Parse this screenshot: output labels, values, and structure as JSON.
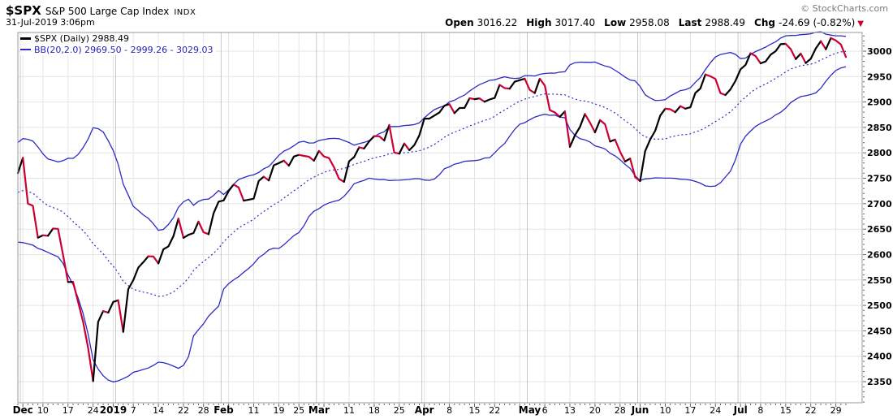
{
  "header": {
    "symbol": "$SPX",
    "name": "S&P 500 Large Cap Index",
    "exchange": "INDX",
    "datetime": "31-Jul-2019 3:06pm",
    "copyright": "© StockCharts.com"
  },
  "quote": {
    "open_label": "Open",
    "open": "3016.22",
    "high_label": "High",
    "high": "3017.40",
    "low_label": "Low",
    "low": "2958.08",
    "last_label": "Last",
    "last": "2988.49",
    "chg_label": "Chg",
    "chg": "-24.69 (-0.82%)"
  },
  "icons": {
    "down_triangle": "▼"
  },
  "legend": {
    "price": "$SPX (Daily) 2988.49",
    "bb": "BB(20,2.0) 2969.50 - 2999.26 - 3029.03"
  },
  "colors": {
    "price_up": "#000000",
    "price_down": "#cc0033",
    "band": "#2b2bc4",
    "grid": "#e4e4e4",
    "grid_month": "#c8c8c8",
    "border": "#9a9a9a",
    "tick": "#666666",
    "axis_text": "#000000"
  },
  "chart_data": {
    "type": "line",
    "title": "$SPX S&P 500 Large Cap Index (Daily) with Bollinger Bands (20,2.0)",
    "y_axis": {
      "min": 2350,
      "max": 3000,
      "step": 50,
      "range_top": 3036.7,
      "range_bottom": 2308.5,
      "grid": true
    },
    "x_ticks": [
      {
        "label": "Dec",
        "date": "2018-12-03",
        "bold": true
      },
      {
        "label": "10",
        "date": "2018-12-10"
      },
      {
        "label": "17",
        "date": "2018-12-17"
      },
      {
        "label": "24",
        "date": "2018-12-24"
      },
      {
        "label": "2019",
        "date": "2018-12-31",
        "bold": true
      },
      {
        "label": "7",
        "date": "2019-01-07"
      },
      {
        "label": "14",
        "date": "2019-01-14"
      },
      {
        "label": "22",
        "date": "2019-01-22"
      },
      {
        "label": "28",
        "date": "2019-01-28"
      },
      {
        "label": "Feb",
        "date": "2019-02-01",
        "bold": true
      },
      {
        "label": "11",
        "date": "2019-02-11"
      },
      {
        "label": "19",
        "date": "2019-02-19"
      },
      {
        "label": "25",
        "date": "2019-02-25"
      },
      {
        "label": "Mar",
        "date": "2019-03-01",
        "bold": true
      },
      {
        "label": "11",
        "date": "2019-03-11"
      },
      {
        "label": "18",
        "date": "2019-03-18"
      },
      {
        "label": "25",
        "date": "2019-03-25"
      },
      {
        "label": "Apr",
        "date": "2019-04-01",
        "bold": true
      },
      {
        "label": "8",
        "date": "2019-04-08"
      },
      {
        "label": "15",
        "date": "2019-04-15"
      },
      {
        "label": "22",
        "date": "2019-04-22"
      },
      {
        "label": "May",
        "date": "2019-05-01",
        "bold": true
      },
      {
        "label": "6",
        "date": "2019-05-06"
      },
      {
        "label": "13",
        "date": "2019-05-13"
      },
      {
        "label": "20",
        "date": "2019-05-20"
      },
      {
        "label": "28",
        "date": "2019-05-28"
      },
      {
        "label": "Jun",
        "date": "2019-06-03",
        "bold": true
      },
      {
        "label": "10",
        "date": "2019-06-10"
      },
      {
        "label": "17",
        "date": "2019-06-17"
      },
      {
        "label": "24",
        "date": "2019-06-24"
      },
      {
        "label": "Jul",
        "date": "2019-07-01",
        "bold": true
      },
      {
        "label": "8",
        "date": "2019-07-08"
      },
      {
        "label": "15",
        "date": "2019-07-15"
      },
      {
        "label": "22",
        "date": "2019-07-22"
      },
      {
        "label": "29",
        "date": "2019-07-29"
      }
    ],
    "bollinger": {
      "period": 20,
      "stddev": 2.0,
      "last_values": {
        "lower": 2969.5,
        "middle": 2999.26,
        "upper": 3029.03
      },
      "pre_window_closes": [
        2740.37,
        2723.06,
        2738.31,
        2755.45,
        2813.89,
        2806.83,
        2781.01,
        2726.22,
        2722.18,
        2701.58,
        2730.2,
        2736.27,
        2690.73,
        2641.89,
        2649.93,
        2632.56,
        2673.45,
        2682.17,
        2743.79,
        2737.8
      ]
    },
    "series": {
      "name": "$SPX Close",
      "dates": [
        "2018-11-30",
        "2018-12-03",
        "2018-12-04",
        "2018-12-06",
        "2018-12-07",
        "2018-12-10",
        "2018-12-11",
        "2018-12-12",
        "2018-12-13",
        "2018-12-14",
        "2018-12-17",
        "2018-12-18",
        "2018-12-19",
        "2018-12-20",
        "2018-12-21",
        "2018-12-24",
        "2018-12-26",
        "2018-12-27",
        "2018-12-28",
        "2018-12-31",
        "2019-01-02",
        "2019-01-03",
        "2019-01-04",
        "2019-01-07",
        "2019-01-08",
        "2019-01-09",
        "2019-01-10",
        "2019-01-11",
        "2019-01-14",
        "2019-01-15",
        "2019-01-16",
        "2019-01-17",
        "2019-01-18",
        "2019-01-22",
        "2019-01-23",
        "2019-01-24",
        "2019-01-25",
        "2019-01-28",
        "2019-01-29",
        "2019-01-30",
        "2019-01-31",
        "2019-02-01",
        "2019-02-04",
        "2019-02-05",
        "2019-02-06",
        "2019-02-07",
        "2019-02-08",
        "2019-02-11",
        "2019-02-12",
        "2019-02-13",
        "2019-02-14",
        "2019-02-15",
        "2019-02-19",
        "2019-02-20",
        "2019-02-21",
        "2019-02-22",
        "2019-02-25",
        "2019-02-26",
        "2019-02-27",
        "2019-02-28",
        "2019-03-01",
        "2019-03-04",
        "2019-03-05",
        "2019-03-06",
        "2019-03-07",
        "2019-03-08",
        "2019-03-11",
        "2019-03-12",
        "2019-03-13",
        "2019-03-14",
        "2019-03-15",
        "2019-03-18",
        "2019-03-19",
        "2019-03-20",
        "2019-03-21",
        "2019-03-22",
        "2019-03-25",
        "2019-03-26",
        "2019-03-27",
        "2019-03-28",
        "2019-03-29",
        "2019-04-01",
        "2019-04-02",
        "2019-04-03",
        "2019-04-04",
        "2019-04-05",
        "2019-04-08",
        "2019-04-09",
        "2019-04-10",
        "2019-04-11",
        "2019-04-12",
        "2019-04-15",
        "2019-04-16",
        "2019-04-17",
        "2019-04-18",
        "2019-04-22",
        "2019-04-23",
        "2019-04-24",
        "2019-04-25",
        "2019-04-26",
        "2019-04-29",
        "2019-04-30",
        "2019-05-01",
        "2019-05-02",
        "2019-05-03",
        "2019-05-06",
        "2019-05-07",
        "2019-05-08",
        "2019-05-09",
        "2019-05-10",
        "2019-05-13",
        "2019-05-14",
        "2019-05-15",
        "2019-05-16",
        "2019-05-17",
        "2019-05-20",
        "2019-05-21",
        "2019-05-22",
        "2019-05-23",
        "2019-05-24",
        "2019-05-28",
        "2019-05-29",
        "2019-05-30",
        "2019-05-31",
        "2019-06-03",
        "2019-06-04",
        "2019-06-05",
        "2019-06-06",
        "2019-06-07",
        "2019-06-10",
        "2019-06-11",
        "2019-06-12",
        "2019-06-13",
        "2019-06-14",
        "2019-06-17",
        "2019-06-18",
        "2019-06-19",
        "2019-06-20",
        "2019-06-21",
        "2019-06-24",
        "2019-06-25",
        "2019-06-26",
        "2019-06-27",
        "2019-06-28",
        "2019-07-01",
        "2019-07-02",
        "2019-07-03",
        "2019-07-05",
        "2019-07-08",
        "2019-07-09",
        "2019-07-10",
        "2019-07-11",
        "2019-07-12",
        "2019-07-15",
        "2019-07-16",
        "2019-07-17",
        "2019-07-18",
        "2019-07-19",
        "2019-07-22",
        "2019-07-23",
        "2019-07-24",
        "2019-07-25",
        "2019-07-26",
        "2019-07-29",
        "2019-07-30",
        "2019-07-31"
      ],
      "closes": [
        2760.17,
        2790.37,
        2700.06,
        2695.95,
        2633.08,
        2637.72,
        2636.78,
        2651.07,
        2650.54,
        2599.95,
        2545.94,
        2546.16,
        2506.96,
        2467.42,
        2416.62,
        2351.1,
        2467.7,
        2488.83,
        2485.74,
        2506.85,
        2510.03,
        2447.89,
        2531.94,
        2549.69,
        2574.41,
        2584.96,
        2596.64,
        2596.26,
        2582.61,
        2610.3,
        2616.1,
        2635.96,
        2670.71,
        2632.9,
        2638.7,
        2642.33,
        2664.76,
        2643.85,
        2640.0,
        2681.05,
        2704.1,
        2706.53,
        2724.87,
        2737.7,
        2731.61,
        2706.05,
        2707.88,
        2709.8,
        2744.73,
        2753.03,
        2745.73,
        2775.6,
        2779.76,
        2784.7,
        2774.88,
        2792.67,
        2796.11,
        2793.9,
        2792.38,
        2784.49,
        2803.69,
        2792.81,
        2789.65,
        2771.45,
        2748.93,
        2743.07,
        2783.3,
        2791.52,
        2810.92,
        2808.48,
        2822.48,
        2832.94,
        2832.57,
        2824.23,
        2854.88,
        2800.71,
        2798.36,
        2818.46,
        2805.37,
        2815.44,
        2834.4,
        2867.19,
        2867.24,
        2873.4,
        2879.39,
        2892.74,
        2895.77,
        2878.2,
        2888.21,
        2888.32,
        2907.41,
        2905.58,
        2907.06,
        2900.45,
        2905.03,
        2907.97,
        2933.68,
        2927.25,
        2926.17,
        2939.88,
        2943.03,
        2945.83,
        2923.73,
        2917.52,
        2945.64,
        2932.47,
        2884.05,
        2879.42,
        2870.72,
        2881.4,
        2811.87,
        2834.41,
        2850.96,
        2876.32,
        2859.53,
        2840.23,
        2864.36,
        2856.27,
        2822.24,
        2826.06,
        2802.39,
        2783.02,
        2788.86,
        2752.06,
        2744.45,
        2803.27,
        2826.15,
        2843.49,
        2873.34,
        2886.73,
        2885.72,
        2879.84,
        2891.64,
        2886.98,
        2889.67,
        2917.75,
        2926.46,
        2954.18,
        2950.46,
        2945.35,
        2917.38,
        2913.78,
        2924.92,
        2941.76,
        2964.33,
        2973.01,
        2995.82,
        2990.41,
        2975.95,
        2979.63,
        2993.07,
        2999.91,
        3013.77,
        3014.3,
        3004.04,
        2984.42,
        2995.11,
        2976.61,
        2985.03,
        3005.47,
        3019.56,
        3003.67,
        3025.86,
        3020.97,
        3013.18,
        2988.49
      ]
    }
  }
}
